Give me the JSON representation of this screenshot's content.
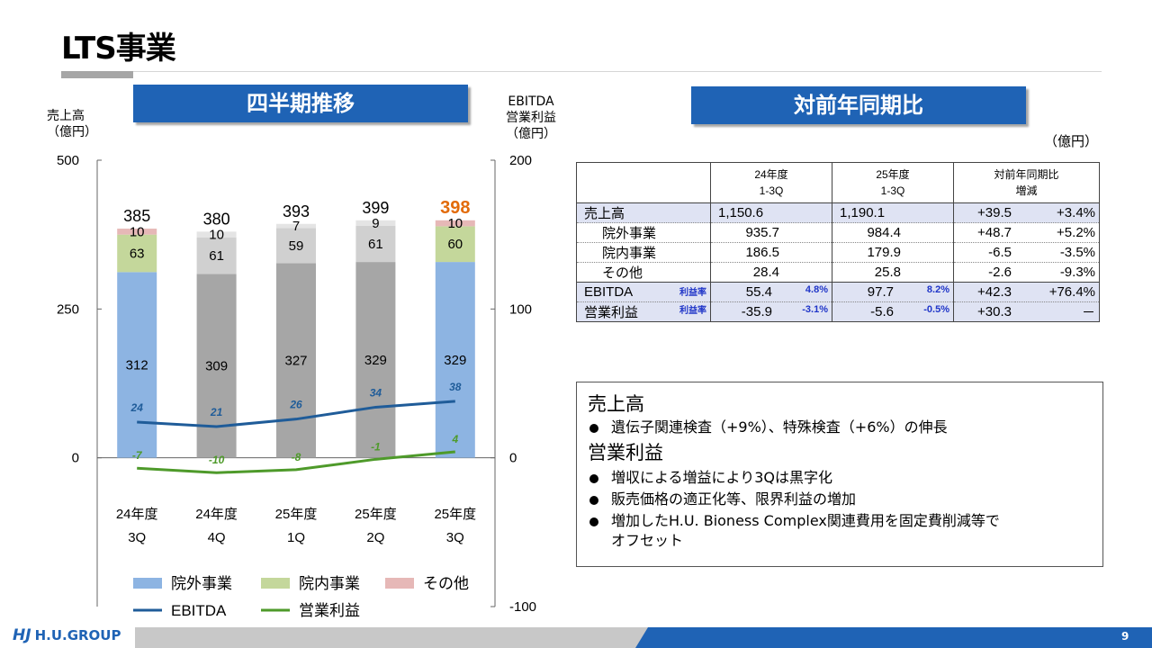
{
  "page": {
    "title": "LTS事業",
    "page_number": "9",
    "logo_text": "H.U.GROUP"
  },
  "banners": {
    "left": "四半期推移",
    "right": "対前年同期比"
  },
  "chart_data": {
    "type": "bar",
    "stacked": true,
    "y_left": {
      "label": [
        "売上高",
        "（億円）"
      ],
      "ticks": [
        0,
        250,
        500
      ],
      "range": [
        0,
        500
      ]
    },
    "y_right": {
      "label": [
        "EBITDA",
        "営業利益",
        "（億円）"
      ],
      "ticks": [
        -100,
        0,
        100,
        200
      ],
      "range": [
        -100,
        200
      ]
    },
    "categories": [
      [
        "24年度",
        "3Q"
      ],
      [
        "24年度",
        "4Q"
      ],
      [
        "25年度",
        "1Q"
      ],
      [
        "25年度",
        "2Q"
      ],
      [
        "25年度",
        "3Q"
      ]
    ],
    "totals": [
      "385",
      "380",
      "393",
      "399",
      "398"
    ],
    "highlight_total_index": 4,
    "series": [
      {
        "name": "院外事業",
        "values": [
          312,
          309,
          327,
          329,
          329
        ],
        "color": "#8db4e2",
        "alt_color": "#a6a6a6"
      },
      {
        "name": "院内事業",
        "values": [
          63,
          61,
          59,
          61,
          60
        ],
        "color": "#c4d79b",
        "alt_color": "#d0d0d0"
      },
      {
        "name": "その他",
        "values": [
          10,
          10,
          7,
          9,
          10
        ],
        "color": "#e6b8b7",
        "alt_color": "#e4e4e4"
      }
    ],
    "lines": [
      {
        "name": "EBITDA",
        "values": [
          24,
          21,
          26,
          34,
          38
        ],
        "color": "#1f5c99"
      },
      {
        "name": "営業利益",
        "values": [
          -7,
          -10,
          -8,
          -1,
          4
        ],
        "color": "#4e9a2a"
      }
    ],
    "colored_bar_indices": [
      0,
      4
    ],
    "legend_position": "bottom"
  },
  "yoy_table": {
    "unit": "（億円）",
    "headers": [
      {
        "line1": "24年度",
        "line2": "1-3Q"
      },
      {
        "line1": "25年度",
        "line2": "1-3Q"
      },
      {
        "line1": "対前年同期比",
        "line2": "増減"
      }
    ],
    "rows": [
      {
        "label": "売上高",
        "v24": "1,150.6",
        "v25": "1,190.1",
        "diff": "+39.5",
        "pct": "+3.4%"
      },
      {
        "label": "院外事業",
        "v24": "935.7",
        "v25": "984.4",
        "diff": "+48.7",
        "pct": "+5.2%"
      },
      {
        "label": "院内事業",
        "v24": "186.5",
        "v25": "179.9",
        "diff": "-6.5",
        "pct": "-3.5%"
      },
      {
        "label": "その他",
        "v24": "28.4",
        "v25": "25.8",
        "diff": "-2.6",
        "pct": "-9.3%"
      },
      {
        "label": "EBITDA",
        "rate_tag": "利益率",
        "v24": "55.4",
        "r24": "4.8%",
        "v25": "97.7",
        "r25": "8.2%",
        "diff": "+42.3",
        "pct": "+76.4%"
      },
      {
        "label": "営業利益",
        "rate_tag": "利益率",
        "v24": "-35.9",
        "r24": "-3.1%",
        "v25": "-5.6",
        "r25": "-0.5%",
        "diff": "+30.3",
        "pct": "－"
      }
    ]
  },
  "summary": {
    "sales_heading": "売上高",
    "sales_items": [
      "遺伝子関連検査（+9%）、特殊検査（+6%）の伸長"
    ],
    "profit_heading": "営業利益",
    "profit_items": [
      "増収による増益により3Qは黒字化",
      "販売価格の適正化等、限界利益の増加",
      "増加したH.U. Bioness Complex関連費用を固定費削減等で",
      "オフセット"
    ]
  }
}
